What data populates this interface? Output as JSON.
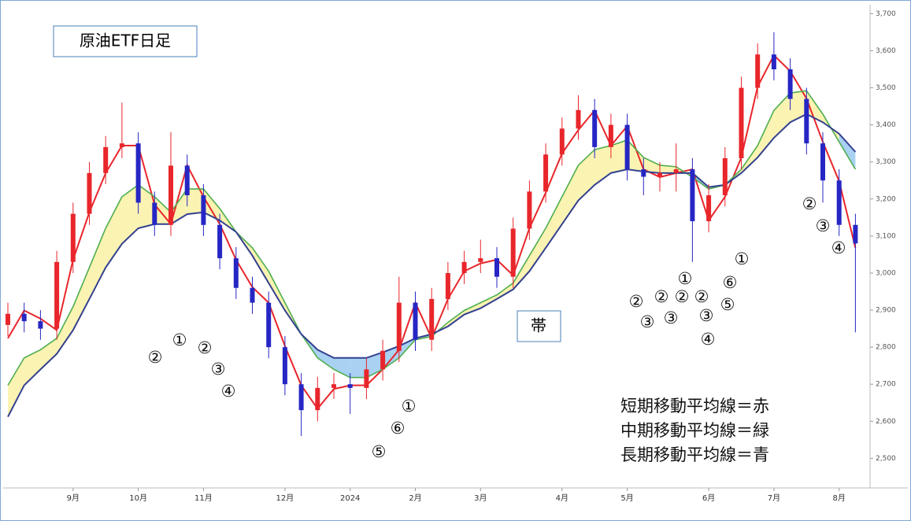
{
  "chart_data": {
    "type": "candlestick",
    "title": "原油ETF日足",
    "band_label": "帯",
    "categories": [
      null,
      null,
      null,
      null,
      "9月",
      null,
      null,
      null,
      "10月",
      null,
      null,
      null,
      "11月",
      null,
      null,
      null,
      null,
      "12月",
      null,
      null,
      null,
      "2024",
      null,
      null,
      null,
      "2月",
      null,
      null,
      null,
      "3月",
      null,
      null,
      null,
      null,
      "4月",
      null,
      null,
      null,
      "5月",
      null,
      null,
      null,
      null,
      "6月",
      null,
      null,
      null,
      "7月",
      null,
      null,
      null,
      "8月",
      null
    ],
    "candles": {
      "open": [
        2860,
        2890,
        2870,
        2850,
        3030,
        3160,
        3270,
        3340,
        3350,
        3190,
        3130,
        3290,
        3210,
        3130,
        3040,
        2960,
        2920,
        2800,
        2700,
        2630,
        2690,
        2700,
        2690,
        2740,
        2790,
        2920,
        2820,
        2930,
        3000,
        3030,
        3040,
        2990,
        3120,
        3220,
        3320,
        3390,
        3440,
        3340,
        3400,
        3280,
        3260,
        3270,
        3280,
        3140,
        3210,
        3310,
        3500,
        3590,
        3550,
        3470,
        3350,
        3250,
        3130
      ],
      "high": [
        2920,
        2920,
        2900,
        3060,
        3190,
        3300,
        3370,
        3460,
        3380,
        3220,
        3380,
        3320,
        3240,
        3160,
        3070,
        2990,
        2950,
        2830,
        2730,
        2720,
        2730,
        2730,
        2770,
        2820,
        2990,
        2950,
        2960,
        3030,
        3060,
        3090,
        3070,
        3150,
        3250,
        3350,
        3420,
        3480,
        3470,
        3430,
        3430,
        3310,
        3300,
        3350,
        3310,
        3240,
        3340,
        3530,
        3620,
        3650,
        3580,
        3500,
        3380,
        3280,
        3160
      ],
      "low": [
        2830,
        2840,
        2820,
        2820,
        3000,
        3130,
        3240,
        3310,
        3160,
        3100,
        3100,
        3180,
        3100,
        3010,
        2930,
        2890,
        2770,
        2670,
        2560,
        2600,
        2660,
        2620,
        2660,
        2710,
        2760,
        2790,
        2790,
        2900,
        2970,
        3000,
        2960,
        2960,
        3090,
        3190,
        3290,
        3360,
        3310,
        3310,
        3250,
        3210,
        3220,
        3220,
        3030,
        3110,
        3180,
        3280,
        3470,
        3520,
        3440,
        3320,
        3190,
        3100,
        2840
      ],
      "close": [
        2890,
        2870,
        2850,
        3030,
        3160,
        3270,
        3340,
        3350,
        3190,
        3130,
        3290,
        3210,
        3130,
        3040,
        2960,
        2920,
        2800,
        2700,
        2630,
        2690,
        2700,
        2690,
        2740,
        2790,
        2920,
        2820,
        2930,
        3000,
        3030,
        3040,
        2990,
        3120,
        3220,
        3320,
        3390,
        3440,
        3340,
        3400,
        3280,
        3260,
        3270,
        3280,
        3140,
        3210,
        3310,
        3500,
        3590,
        3550,
        3470,
        3350,
        3250,
        3130,
        3080
      ]
    },
    "up_color": "#e8262b",
    "down_color": "#2626c4",
    "series": [
      {
        "name": "短期移動平均線＝赤",
        "color": "#e8262b",
        "values": [
          2824,
          2899,
          2877,
          2846,
          3036,
          3164,
          3270,
          3344,
          3344,
          3185,
          3132,
          3291,
          3206,
          3132,
          3036,
          2962,
          2920,
          2803,
          2697,
          2634,
          2687,
          2697,
          2697,
          2740,
          2793,
          2920,
          2824,
          2930,
          3005,
          3026,
          3036,
          2994,
          3121,
          3217,
          3323,
          3386,
          3439,
          3344,
          3397,
          3280,
          3259,
          3270,
          3280,
          3142,
          3206,
          3312,
          3503,
          3588,
          3545,
          3471,
          3354,
          3248,
          3068
        ]
      },
      {
        "name": "中期移動平均線＝緑",
        "color": "#4fae4f",
        "values": [
          2697,
          2771,
          2793,
          2824,
          2909,
          3015,
          3121,
          3206,
          3238,
          3206,
          3164,
          3227,
          3227,
          3174,
          3111,
          3068,
          3005,
          2920,
          2835,
          2771,
          2740,
          2718,
          2718,
          2740,
          2771,
          2820,
          2829,
          2867,
          2899,
          2920,
          2941,
          2973,
          3047,
          3121,
          3206,
          3291,
          3333,
          3344,
          3359,
          3312,
          3291,
          3287,
          3259,
          3227,
          3238,
          3280,
          3344,
          3439,
          3486,
          3492,
          3429,
          3354,
          3280
        ]
      },
      {
        "name": "長期移動平均線＝青",
        "color": "#33418f",
        "values": [
          2612,
          2697,
          2740,
          2782,
          2846,
          2930,
          3015,
          3079,
          3121,
          3132,
          3132,
          3159,
          3164,
          3142,
          3111,
          3047,
          2973,
          2899,
          2835,
          2793,
          2771,
          2771,
          2771,
          2786,
          2803,
          2824,
          2835,
          2856,
          2888,
          2905,
          2930,
          2956,
          3005,
          3068,
          3132,
          3196,
          3238,
          3270,
          3280,
          3274,
          3270,
          3270,
          3270,
          3232,
          3238,
          3270,
          3312,
          3365,
          3407,
          3429,
          3407,
          3376,
          3327
        ]
      }
    ],
    "band_up_color": "#faf3b2",
    "band_down_color": "#a9d1f2",
    "annotations": [
      "②",
      "①",
      "②",
      "③",
      "④",
      "①",
      "⑥",
      "⑤",
      "②",
      "②",
      "②",
      "②",
      "①",
      "⑥",
      "⑤",
      "①",
      "③",
      "③",
      "③",
      "④",
      "②",
      "③",
      "④"
    ],
    "ylim": [
      2420,
      3720
    ],
    "yticks": [
      {
        "value": 2500,
        "label": "2,500"
      },
      {
        "value": 2600,
        "label": "2,600"
      },
      {
        "value": 2700,
        "label": "2,700"
      },
      {
        "value": 2800,
        "label": "2,800"
      },
      {
        "value": 2900,
        "label": "2,900"
      },
      {
        "value": 3000,
        "label": "3,000"
      },
      {
        "value": 3100,
        "label": "3,100"
      },
      {
        "value": 3200,
        "label": "3,200"
      },
      {
        "value": 3300,
        "label": "3,300"
      },
      {
        "value": 3400,
        "label": "3,400"
      },
      {
        "value": 3500,
        "label": "3,500"
      },
      {
        "value": 3600,
        "label": "3,600"
      },
      {
        "value": 3700,
        "label": "3,700"
      }
    ]
  }
}
